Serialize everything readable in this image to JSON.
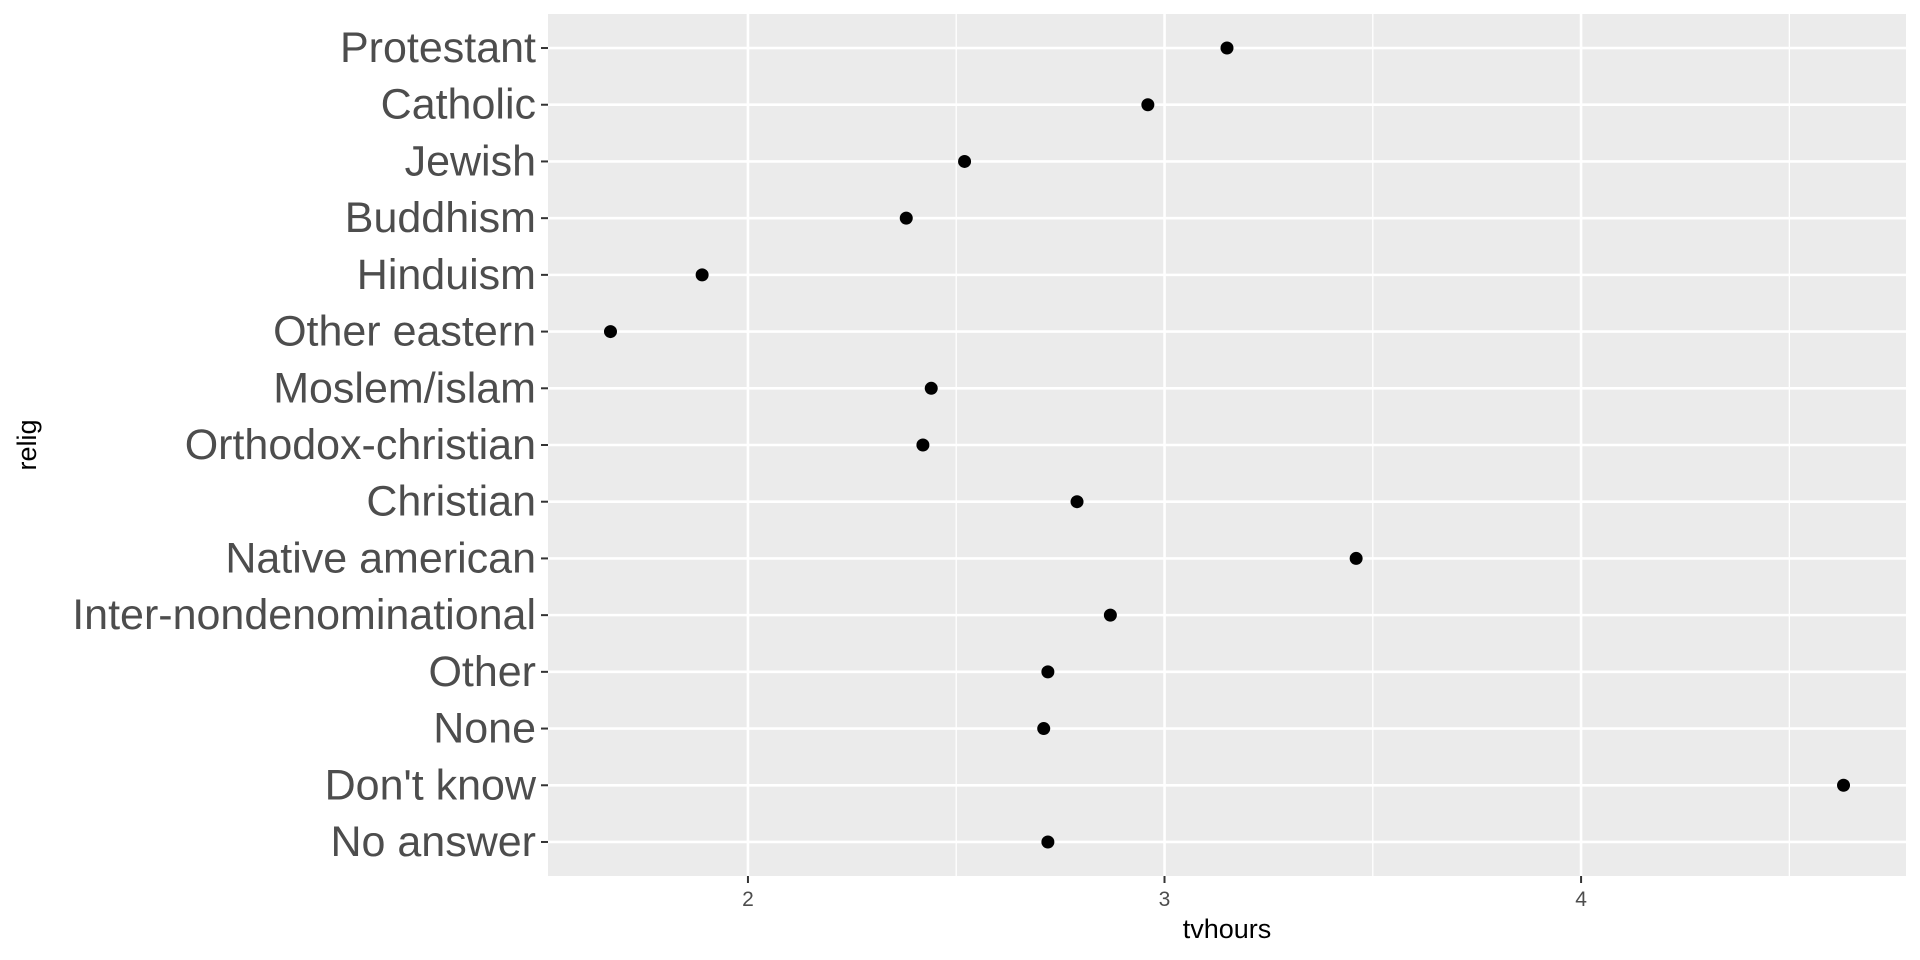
{
  "chart_data": {
    "type": "scatter",
    "xlabel": "tvhours",
    "ylabel": "relig",
    "xlim": [
      1.52,
      4.78
    ],
    "x_ticks": [
      2,
      3,
      4
    ],
    "x_tick_labels": [
      "2",
      "3",
      "4"
    ],
    "x_minor_ticks": [
      2.5,
      3.5,
      4.5
    ],
    "grid": true,
    "categories": [
      "Protestant",
      "Catholic",
      "Jewish",
      "Buddhism",
      "Hinduism",
      "Other eastern",
      "Moslem/islam",
      "Orthodox-christian",
      "Christian",
      "Native american",
      "Inter-nondenominational",
      "Other",
      "None",
      "Don't know",
      "No answer"
    ],
    "values": [
      3.15,
      2.96,
      2.52,
      2.38,
      1.89,
      1.67,
      2.44,
      2.42,
      2.79,
      3.46,
      2.87,
      2.72,
      2.71,
      4.63,
      2.72
    ]
  },
  "colors": {
    "panel": "#ebebeb",
    "grid": "#ffffff",
    "point": "#000000",
    "tick_text": "#4d4d4d"
  }
}
